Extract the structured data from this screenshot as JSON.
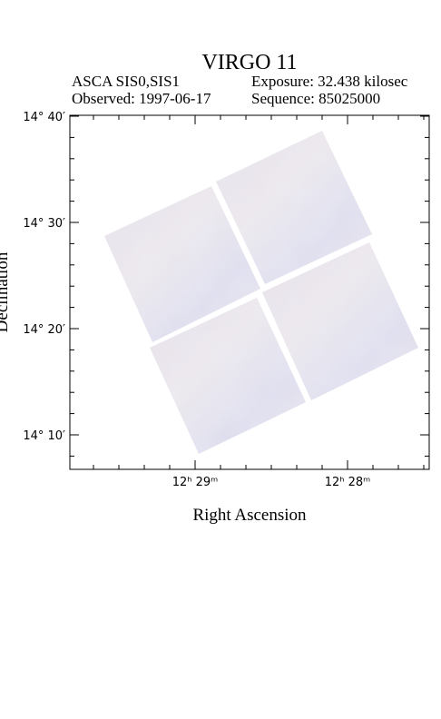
{
  "header": {
    "title": "VIRGO 11",
    "instrument": "ASCA SIS0,SIS1",
    "exposure": "Exposure: 32.438 kilosec",
    "observed": "Observed: 1997-06-17",
    "sequence": "Sequence: 85025000"
  },
  "axes": {
    "x_label": "Right Ascension",
    "y_label": "Declination",
    "y_tick_labels": [
      "14° 40′",
      "14° 30′",
      "14° 20′",
      "14° 10′"
    ],
    "x_tick_labels": [
      "12ʰ 29ᵐ",
      "12ʰ 28ᵐ"
    ]
  }
}
